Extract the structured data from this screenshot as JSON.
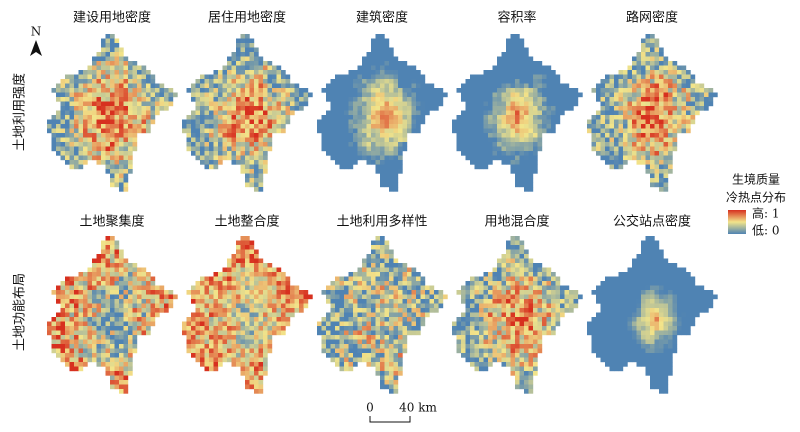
{
  "panels": [
    {
      "title": "建设用地密度"
    },
    {
      "title": "居住用地密度"
    },
    {
      "title": "建筑密度"
    },
    {
      "title": "容积率"
    },
    {
      "title": "路网密度"
    },
    {
      "title": "土地聚集度"
    },
    {
      "title": "土地整合度"
    },
    {
      "title": "土地利用多样性"
    },
    {
      "title": "用地混合度"
    },
    {
      "title": "公交站点密度"
    }
  ],
  "row_labels": [
    "土地利用强度",
    "土地功能布局"
  ],
  "north": "N",
  "legend": {
    "title_line1": "生境质量",
    "title_line2": "冷热点分布",
    "high": "高: 1",
    "low": "低: 0"
  },
  "scale_bar": {
    "start": "0",
    "end": "40 km"
  }
}
